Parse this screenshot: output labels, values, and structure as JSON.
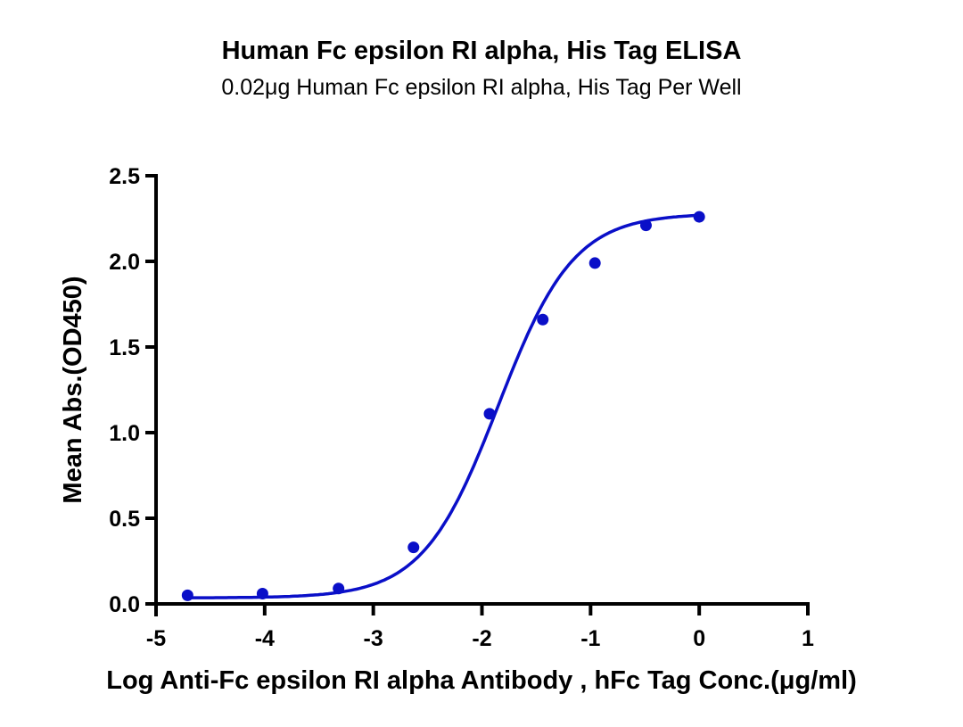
{
  "chart_data": {
    "type": "scatter",
    "title": "Human Fc epsilon RI alpha, His Tag ELISA",
    "subtitle": "0.02μg Human Fc epsilon RI alpha, His Tag Per Well",
    "xlabel": "Log Anti-Fc epsilon RI alpha Antibody , hFc Tag Conc.(μg/ml)",
    "ylabel": "Mean Abs.(OD450)",
    "xlim": [
      -5,
      1
    ],
    "ylim": [
      0,
      2.5
    ],
    "x_ticks": [
      -5,
      -4,
      -3,
      -2,
      -1,
      0,
      1
    ],
    "x_tick_labels": [
      "-5",
      "-4",
      "-3",
      "-2",
      "-1",
      "0",
      "1"
    ],
    "y_ticks": [
      0,
      0.5,
      1.0,
      1.5,
      2.0,
      2.5
    ],
    "y_tick_labels": [
      "0.0",
      "0.5",
      "1.0",
      "1.5",
      "2.0",
      "2.5"
    ],
    "grid": false,
    "legend": null,
    "series": [
      {
        "name": "Human Fc epsilon RI alpha, His Tag",
        "color": "#0a0fc8",
        "marker": "circle",
        "fit": "4PL sigmoid",
        "x": [
          -4.71,
          -4.02,
          -3.32,
          -2.63,
          -1.93,
          -1.44,
          -0.96,
          -0.49,
          0.0
        ],
        "y": [
          0.05,
          0.06,
          0.09,
          0.33,
          1.11,
          1.66,
          1.99,
          2.21,
          2.26
        ]
      }
    ]
  },
  "colors": {
    "series": "#0a0fc8",
    "axis": "#000000",
    "background": "#ffffff"
  }
}
